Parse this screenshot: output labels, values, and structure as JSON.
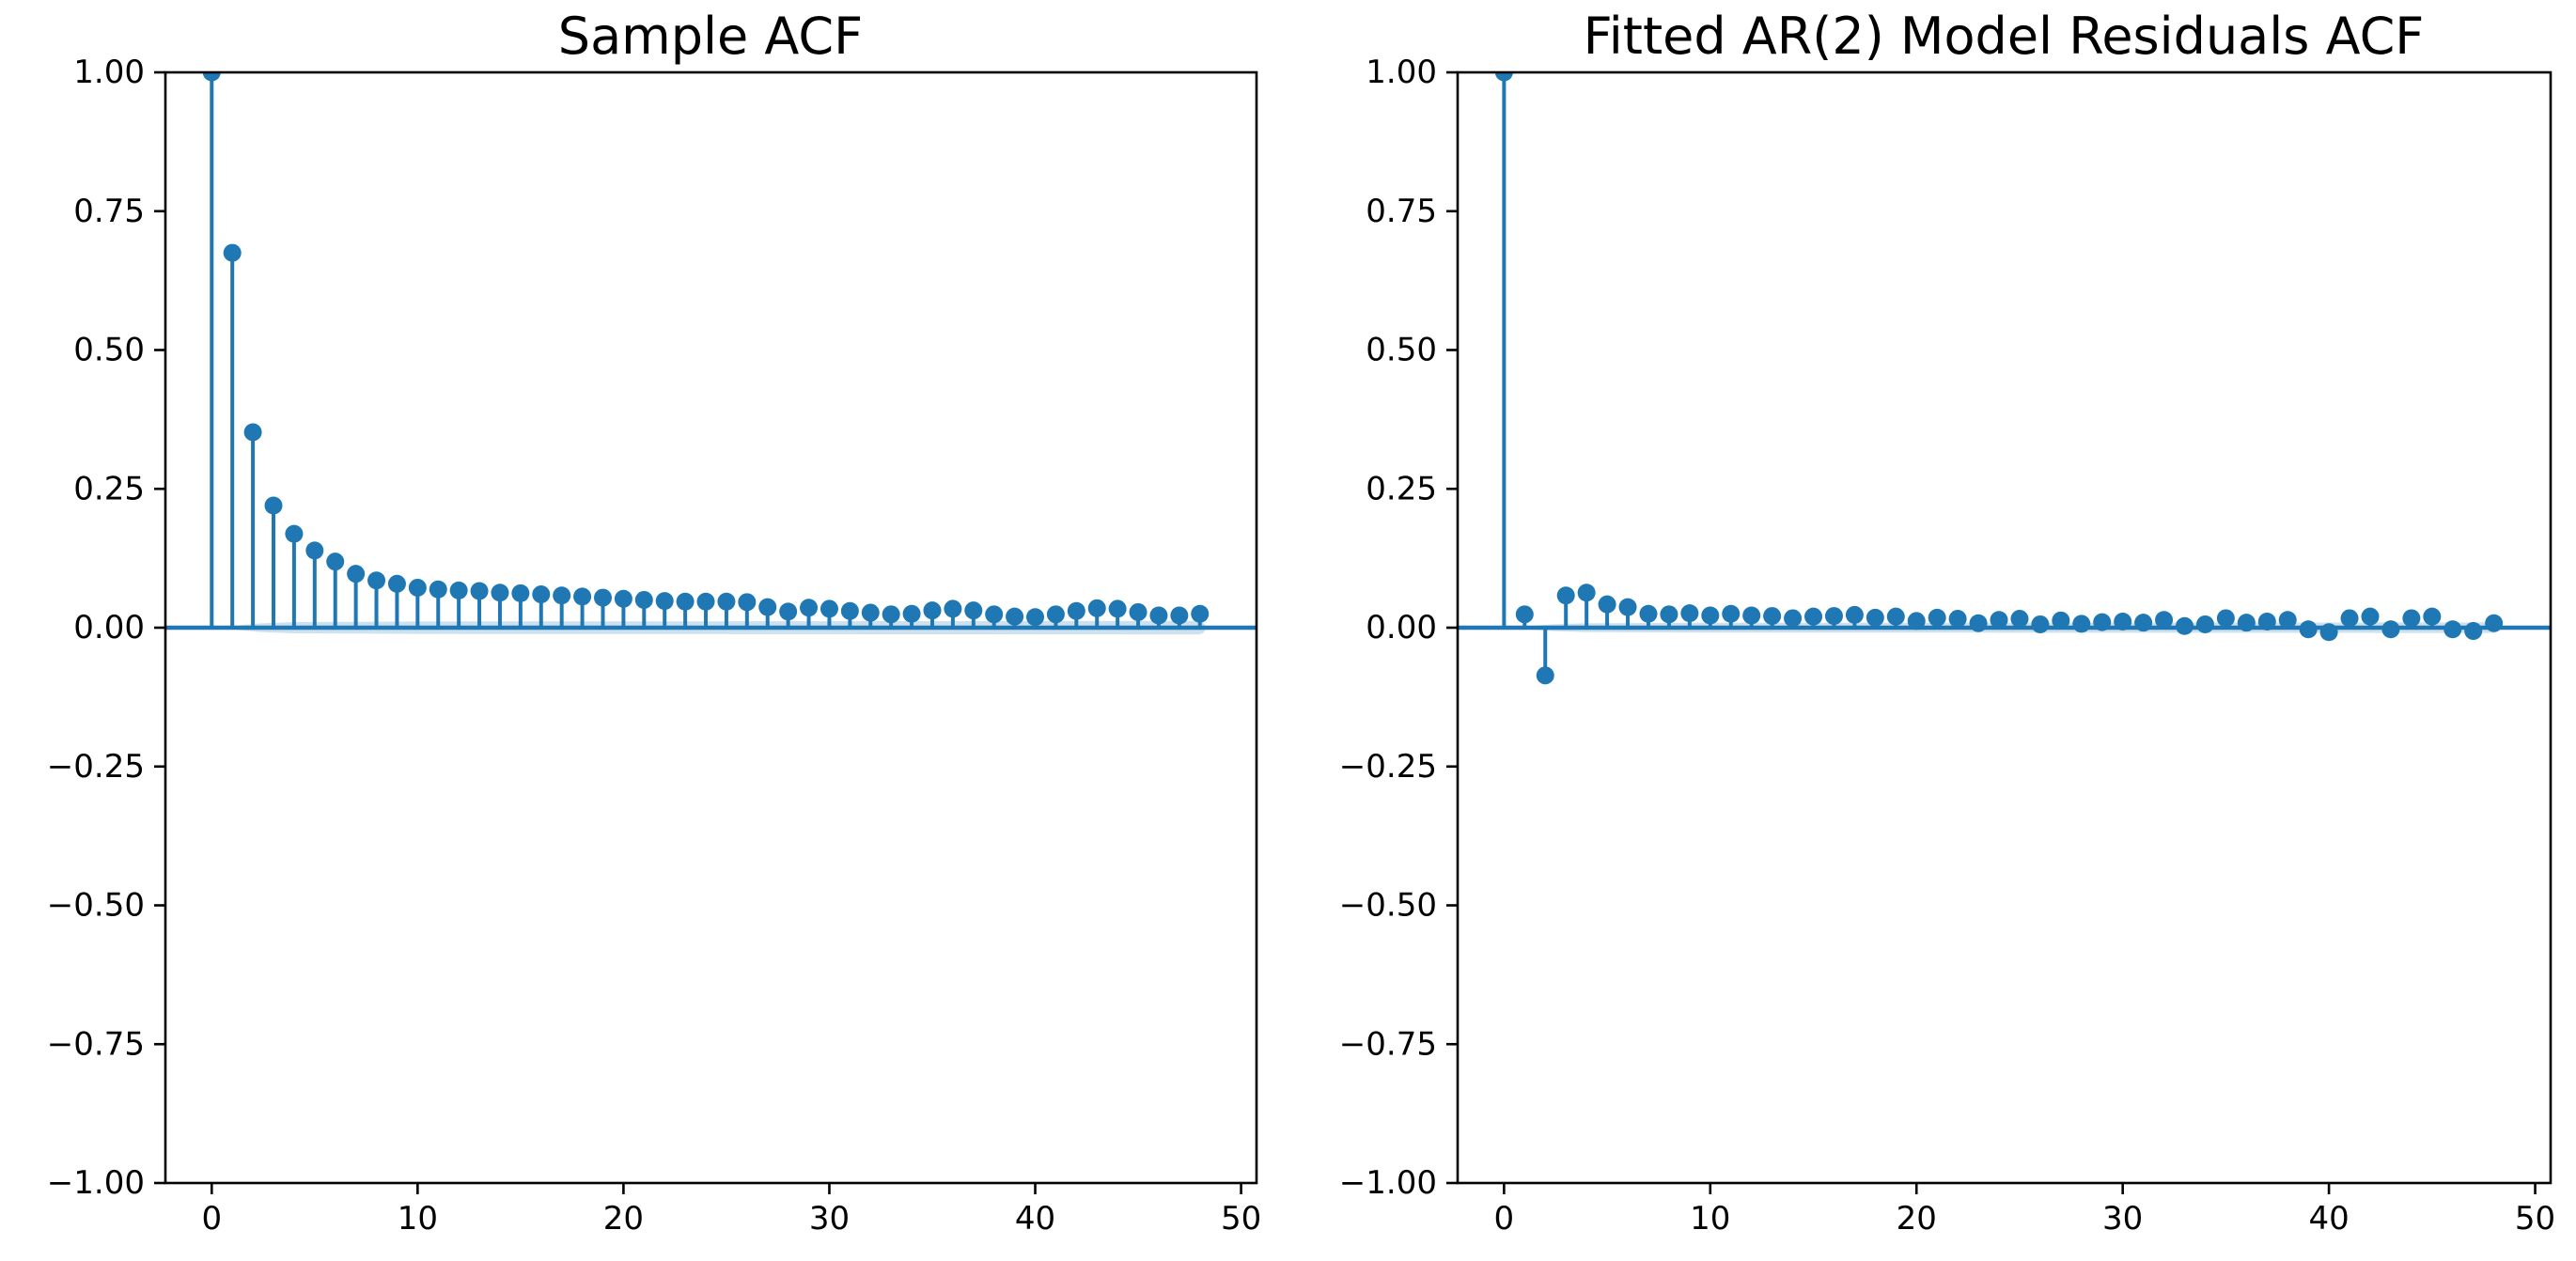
{
  "figure": {
    "background_color": "#ffffff",
    "axes_color": "#000000",
    "accent_color": "#1f77b4"
  },
  "chart_data": [
    {
      "type": "stem",
      "title": "Sample ACF",
      "xlim": [
        -2.25,
        50.75
      ],
      "ylim": [
        -1.0,
        1.0
      ],
      "x_ticks": [
        0,
        10,
        20,
        30,
        40,
        50
      ],
      "x_tick_labels": [
        "0",
        "10",
        "20",
        "30",
        "40",
        "50"
      ],
      "y_ticks": [
        1.0,
        0.75,
        0.5,
        0.25,
        0.0,
        -0.25,
        -0.5,
        -0.75,
        -1.0
      ],
      "y_tick_labels": [
        "1.00",
        "0.75",
        "0.50",
        "0.25",
        "0.00",
        "−0.25",
        "−0.50",
        "−0.75",
        "−1.00"
      ],
      "grid": false,
      "legend": null,
      "stem_color": "#1f77b4",
      "marker_color": "#1f77b4",
      "baseline_value": 0,
      "band_color": "#1f77b4",
      "band_opacity": 0.22,
      "conf_band": {
        "start_lag": 0.55,
        "end_lag": 48.35,
        "half_widths": [
          [
            1,
            0.0062
          ],
          [
            4,
            0.01
          ],
          [
            10,
            0.0112
          ],
          [
            48.3,
            0.0122
          ]
        ]
      },
      "lags": [
        0,
        1,
        2,
        3,
        4,
        5,
        6,
        7,
        8,
        9,
        10,
        11,
        12,
        13,
        14,
        15,
        16,
        17,
        18,
        19,
        20,
        21,
        22,
        23,
        24,
        25,
        26,
        27,
        28,
        29,
        30,
        31,
        32,
        33,
        34,
        35,
        36,
        37,
        38,
        39,
        40,
        41,
        42,
        43,
        44,
        45,
        46,
        47,
        48
      ],
      "values": [
        1.0,
        0.675,
        0.352,
        0.22,
        0.169,
        0.139,
        0.119,
        0.097,
        0.085,
        0.079,
        0.072,
        0.069,
        0.067,
        0.066,
        0.063,
        0.062,
        0.06,
        0.058,
        0.056,
        0.054,
        0.052,
        0.05,
        0.048,
        0.047,
        0.047,
        0.047,
        0.046,
        0.037,
        0.029,
        0.036,
        0.034,
        0.03,
        0.027,
        0.024,
        0.025,
        0.031,
        0.034,
        0.031,
        0.024,
        0.02,
        0.019,
        0.024,
        0.03,
        0.035,
        0.034,
        0.028,
        0.022,
        0.022,
        0.025
      ]
    },
    {
      "type": "stem",
      "title": "Fitted AR(2) Model Residuals ACF",
      "xlim": [
        -2.25,
        50.75
      ],
      "ylim": [
        -1.0,
        1.0
      ],
      "x_ticks": [
        0,
        10,
        20,
        30,
        40,
        50
      ],
      "x_tick_labels": [
        "0",
        "10",
        "20",
        "30",
        "40",
        "50"
      ],
      "y_ticks": [
        1.0,
        0.75,
        0.5,
        0.25,
        0.0,
        -0.25,
        -0.5,
        -0.75,
        -1.0
      ],
      "y_tick_labels": [
        "1.00",
        "0.75",
        "0.50",
        "0.25",
        "0.00",
        "−0.25",
        "−0.50",
        "−0.75",
        "−1.00"
      ],
      "grid": false,
      "legend": null,
      "stem_color": "#1f77b4",
      "marker_color": "#1f77b4",
      "baseline_value": 0,
      "band_color": "#1f77b4",
      "band_opacity": 0.22,
      "conf_band": {
        "start_lag": 0.55,
        "end_lag": 48.35,
        "half_widths": [
          [
            1,
            0.0048
          ],
          [
            4,
            0.008
          ],
          [
            10,
            0.0088
          ],
          [
            48.3,
            0.0095
          ]
        ]
      },
      "lags": [
        0,
        1,
        2,
        3,
        4,
        5,
        6,
        7,
        8,
        9,
        10,
        11,
        12,
        13,
        14,
        15,
        16,
        17,
        18,
        19,
        20,
        21,
        22,
        23,
        24,
        25,
        26,
        27,
        28,
        29,
        30,
        31,
        32,
        33,
        34,
        35,
        36,
        37,
        38,
        39,
        40,
        41,
        42,
        43,
        44,
        45,
        46,
        47,
        48
      ],
      "values": [
        1.0,
        0.024,
        -0.086,
        0.058,
        0.063,
        0.042,
        0.037,
        0.025,
        0.024,
        0.026,
        0.022,
        0.025,
        0.022,
        0.021,
        0.017,
        0.02,
        0.021,
        0.023,
        0.018,
        0.02,
        0.012,
        0.018,
        0.016,
        0.008,
        0.014,
        0.016,
        0.006,
        0.013,
        0.007,
        0.01,
        0.011,
        0.009,
        0.014,
        0.003,
        0.006,
        0.017,
        0.009,
        0.011,
        0.014,
        -0.003,
        -0.008,
        0.017,
        0.02,
        -0.003,
        0.017,
        0.02,
        -0.003,
        -0.006,
        0.008
      ]
    }
  ]
}
